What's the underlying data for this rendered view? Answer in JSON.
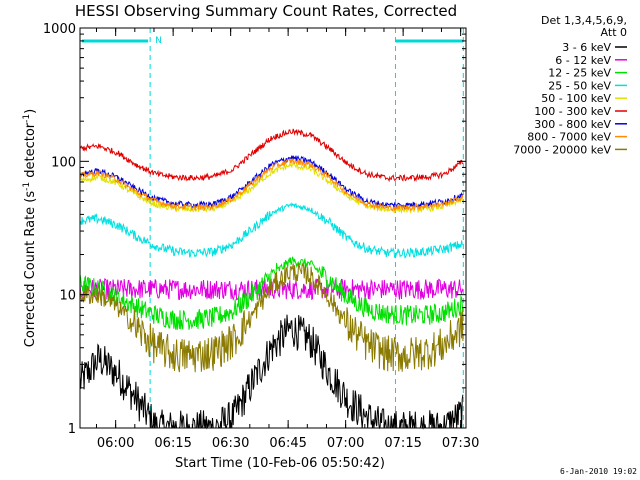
{
  "chart_data": {
    "type": "line",
    "title": "HESSI Observing Summary Count Rates, Corrected",
    "xlabel": "Start Time (10-Feb-06 05:50:42)",
    "ylabel": "Corrected Count Rate (s⁻¹ detector⁻¹)",
    "ylabel_main": "Corrected Count Rate (s",
    "ylabel_exp": "-1",
    "ylabel_mid": " detector",
    "ylabel_exp2": "-1",
    "ylabel_end": ")",
    "x_tick_labels": [
      "06:00",
      "06:15",
      "06:30",
      "06:45",
      "07:00",
      "07:15",
      "07:30"
    ],
    "x_ticks_minutes_after_start": [
      9.3,
      24.3,
      39.3,
      54.3,
      69.3,
      84.3,
      99.3
    ],
    "xlim_minutes_after_start": [
      0,
      100.7
    ],
    "y_tick_labels": [
      "1",
      "10",
      "100",
      "1000"
    ],
    "y_ticks": [
      1,
      10,
      100,
      1000
    ],
    "ylim": [
      1,
      1000
    ],
    "yscale": "log",
    "legend_header": [
      "Det 1,3,4,5,6,9,",
      "Att 0"
    ],
    "legend_placement": "right",
    "footer": "6-Jan-2010 19:02",
    "night_marker_label": "N",
    "event_markers_minutes": [
      18.3,
      82.3,
      100.0
    ],
    "night_marker_start_minutes": 18.3,
    "series": [
      {
        "name": "3 - 6 keV",
        "color": "#000000",
        "x": [
          0,
          5,
          10,
          15,
          20,
          25,
          30,
          35,
          40,
          45,
          50,
          55,
          60,
          65,
          70,
          75,
          80,
          85,
          90,
          95,
          100
        ],
        "y": [
          2.2,
          3.3,
          2.5,
          1.6,
          1,
          1,
          1,
          1,
          1.2,
          2.2,
          4.0,
          5.6,
          4.6,
          2.6,
          1.6,
          1.2,
          1,
          1,
          1,
          1,
          1.3
        ]
      },
      {
        "name": "6 - 12 keV",
        "color": "#e000e0",
        "x": [
          0,
          5,
          10,
          15,
          20,
          25,
          30,
          35,
          40,
          45,
          50,
          55,
          60,
          65,
          70,
          75,
          80,
          85,
          90,
          95,
          100
        ],
        "y": [
          11,
          11,
          11,
          11,
          11,
          11,
          11,
          11,
          11,
          11,
          11,
          11,
          11,
          11,
          11,
          11,
          11,
          11,
          11,
          11,
          11
        ]
      },
      {
        "name": "12 - 25 keV",
        "color": "#00e000",
        "x": [
          0,
          5,
          10,
          15,
          20,
          25,
          30,
          35,
          40,
          45,
          50,
          55,
          60,
          65,
          70,
          75,
          80,
          85,
          90,
          95,
          100
        ],
        "y": [
          12,
          11,
          9.5,
          8.0,
          7.0,
          6.5,
          6.5,
          6.7,
          7.6,
          10,
          14,
          18,
          17,
          13,
          9.5,
          7.8,
          7.2,
          7.0,
          7.0,
          7.3,
          8.5
        ]
      },
      {
        "name": "25 - 50 keV",
        "color": "#00e0e0",
        "x": [
          0,
          5,
          10,
          15,
          20,
          25,
          30,
          35,
          40,
          45,
          50,
          55,
          60,
          65,
          70,
          75,
          80,
          85,
          90,
          95,
          100
        ],
        "y": [
          36,
          37,
          33,
          27,
          23,
          21,
          20.5,
          21,
          24,
          31,
          41,
          47,
          44,
          35,
          26,
          22,
          20.5,
          20.5,
          21,
          22,
          24
        ]
      },
      {
        "name": "50 - 100 keV",
        "color": "#e0e000",
        "x": [
          0,
          5,
          10,
          15,
          20,
          25,
          30,
          35,
          40,
          45,
          50,
          55,
          60,
          65,
          70,
          75,
          80,
          85,
          90,
          95,
          100
        ],
        "y": [
          72,
          76,
          68,
          55,
          47,
          44,
          43.5,
          44,
          50,
          64,
          83,
          94,
          88,
          70,
          54,
          46,
          43.5,
          43.5,
          44,
          46,
          52
        ]
      },
      {
        "name": "100 - 300 keV",
        "color": "#e00000",
        "x": [
          0,
          5,
          10,
          15,
          20,
          25,
          30,
          35,
          40,
          45,
          50,
          55,
          60,
          65,
          70,
          75,
          80,
          85,
          90,
          95,
          100
        ],
        "y": [
          125,
          130,
          115,
          93,
          80,
          76,
          75,
          77,
          87,
          115,
          150,
          168,
          158,
          125,
          95,
          80,
          75,
          75,
          76,
          80,
          100
        ]
      },
      {
        "name": "300 - 800 keV",
        "color": "#0000e0",
        "x": [
          0,
          5,
          10,
          15,
          20,
          25,
          30,
          35,
          40,
          45,
          50,
          55,
          60,
          65,
          70,
          75,
          80,
          85,
          90,
          95,
          100
        ],
        "y": [
          80,
          85,
          75,
          61,
          52,
          48,
          47,
          48,
          55,
          72,
          95,
          107,
          100,
          80,
          60,
          50,
          47,
          47,
          48,
          50,
          56
        ]
      },
      {
        "name": "800 - 7000 keV",
        "color": "#ff8c00",
        "x": [
          0,
          5,
          10,
          15,
          20,
          25,
          30,
          35,
          40,
          45,
          50,
          55,
          60,
          65,
          70,
          75,
          80,
          85,
          90,
          95,
          100
        ],
        "y": [
          78,
          82,
          72,
          58,
          50,
          46,
          45,
          46,
          53,
          69,
          90,
          101,
          95,
          76,
          57,
          48,
          45,
          45,
          46,
          48,
          54
        ]
      },
      {
        "name": "7000 - 20000 keV",
        "color": "#8b7a00",
        "x": [
          0,
          5,
          10,
          15,
          20,
          25,
          30,
          35,
          40,
          45,
          50,
          55,
          60,
          65,
          70,
          75,
          80,
          85,
          90,
          95,
          100
        ],
        "y": [
          10,
          10,
          8.0,
          5.5,
          4.0,
          3.5,
          3.5,
          3.7,
          4.5,
          7,
          11.5,
          15,
          14,
          9.5,
          5.8,
          4.2,
          3.6,
          3.5,
          3.7,
          4.2,
          5.8
        ]
      }
    ]
  }
}
